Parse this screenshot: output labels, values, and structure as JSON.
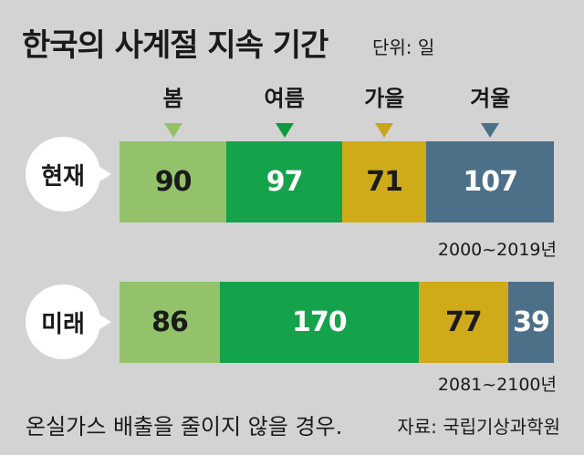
{
  "title": "한국의 사계절 지속 기간",
  "unit": "단위: 일",
  "footnote": "온실가스 배출을 줄이지 않을 경우.",
  "source": "자료: 국립기상과학원",
  "chart_data": {
    "type": "bar",
    "stacked": true,
    "orientation": "horizontal",
    "categories": [
      "현재",
      "미래"
    ],
    "periods": [
      "2000~2019년",
      "2081~2100년"
    ],
    "series": [
      {
        "name": "봄",
        "values": [
          90,
          86
        ],
        "color": "#93c26a",
        "text_color": "#1a1a1a",
        "marker_color": "#93c26a"
      },
      {
        "name": "여름",
        "values": [
          97,
          170
        ],
        "color": "#14a24a",
        "text_color": "#ffffff",
        "marker_color": "#0f9a3f"
      },
      {
        "name": "가을",
        "values": [
          71,
          77
        ],
        "color": "#cfab19",
        "text_color": "#1a1a1a",
        "marker_color": "#caa41a"
      },
      {
        "name": "겨울",
        "values": [
          107,
          39
        ],
        "color": "#4d7089",
        "text_color": "#ffffff",
        "marker_color": "#4d7089"
      }
    ]
  }
}
